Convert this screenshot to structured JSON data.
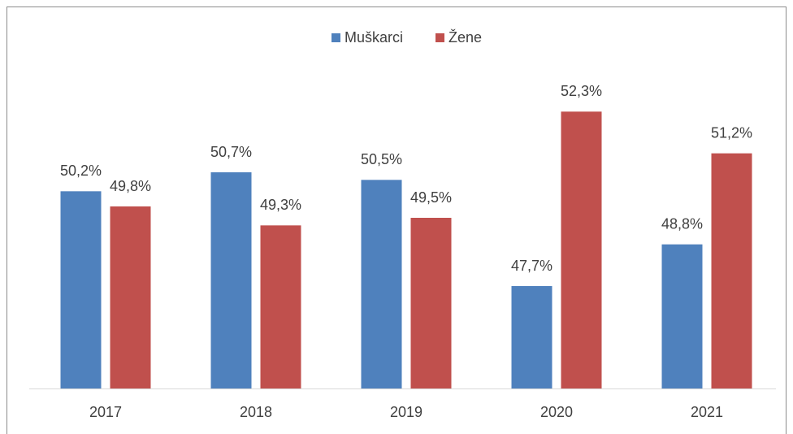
{
  "chart_data": {
    "type": "bar",
    "categories": [
      "2017",
      "2018",
      "2019",
      "2020",
      "2021"
    ],
    "series": [
      {
        "name": "Muškarci",
        "color": "#4f81bd",
        "values": [
          50.2,
          50.7,
          50.5,
          47.7,
          48.8
        ],
        "value_labels": [
          "50,2%",
          "50,7%",
          "50,5%",
          "47,7%",
          "48,8%"
        ]
      },
      {
        "name": "Žene",
        "color": "#c0504d",
        "values": [
          49.8,
          49.3,
          49.5,
          52.3,
          51.2
        ],
        "value_labels": [
          "49,8%",
          "49,3%",
          "49,5%",
          "52,3%",
          "51,2%"
        ]
      }
    ],
    "ylim": [
      45,
      54
    ],
    "legend": "top"
  }
}
